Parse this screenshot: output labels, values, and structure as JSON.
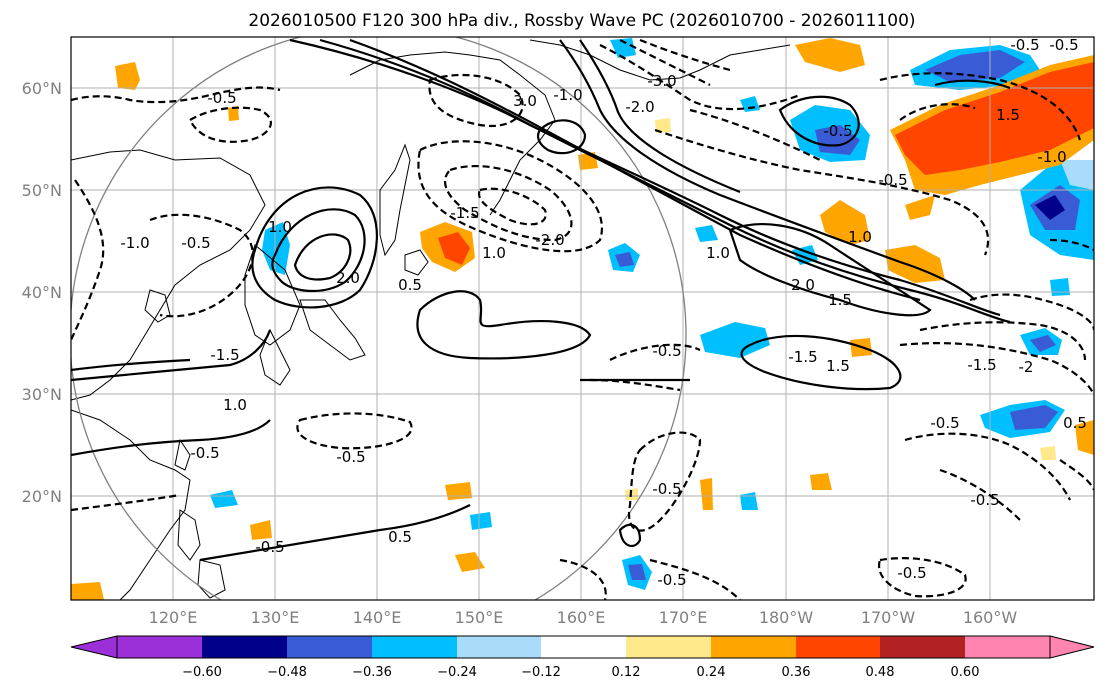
{
  "title": "2026010500 F120 300 hPa div., Rossby Wave PC (2026010700 - 2026011100)",
  "lon_ticks": [
    "120°E",
    "130°E",
    "140°E",
    "150°E",
    "160°E",
    "170°E",
    "180°W",
    "170°W",
    "160°W"
  ],
  "lat_ticks": [
    "60°N",
    "50°N",
    "40°N",
    "30°N",
    "20°N"
  ],
  "colorbar": {
    "levels": [
      "−0.60",
      "−0.48",
      "−0.36",
      "−0.24",
      "−0.12",
      "0.12",
      "0.24",
      "0.36",
      "0.48",
      "0.60"
    ],
    "colors": [
      "#9b30d9",
      "#00008b",
      "#3a5bd6",
      "#00bfff",
      "#a8dcfa",
      "#ffffff",
      "#ffe98a",
      "#ffa500",
      "#ff4500",
      "#b22222",
      "#ff85b0"
    ]
  },
  "contour_labels": [
    "-0.5",
    "1.0",
    "2.0",
    "3.0",
    "-1.5",
    "-2.0",
    "-3.0",
    "1.5",
    "0.5",
    "-1.0"
  ],
  "map_labels": [
    {
      "text": "-0.5"
    },
    {
      "text": "-0.5"
    },
    {
      "text": "-1.0"
    },
    {
      "text": "1.0"
    },
    {
      "text": "2.0"
    },
    {
      "text": "-1.5"
    },
    {
      "text": "1.0"
    },
    {
      "text": "-2.0"
    },
    {
      "text": "3.0"
    },
    {
      "text": "-3.0"
    },
    {
      "text": "-1.0"
    },
    {
      "text": "-2.0"
    },
    {
      "text": "0.5"
    },
    {
      "text": "-0.5"
    },
    {
      "text": "-0.5"
    },
    {
      "text": "-0.5"
    },
    {
      "text": "-0.5"
    },
    {
      "text": "1.0"
    },
    {
      "text": "2.0"
    },
    {
      "text": "1.5"
    },
    {
      "text": "-0.5"
    },
    {
      "text": "1.5"
    },
    {
      "text": "-1.5"
    },
    {
      "text": "-1.0"
    },
    {
      "text": "1.0"
    },
    {
      "text": "-0.5"
    },
    {
      "text": "-1.5"
    },
    {
      "text": "-2"
    },
    {
      "text": "-0.5"
    },
    {
      "text": "0.5"
    },
    {
      "text": "-0.5"
    },
    {
      "text": "-0.5"
    },
    {
      "text": "0.5"
    },
    {
      "text": "-0.5"
    },
    {
      "text": "-0.5"
    },
    {
      "text": "-0.5"
    },
    {
      "text": "-0.5"
    },
    {
      "text": "1.5"
    },
    {
      "text": "1.0"
    },
    {
      "text": "-1.5"
    }
  ]
}
